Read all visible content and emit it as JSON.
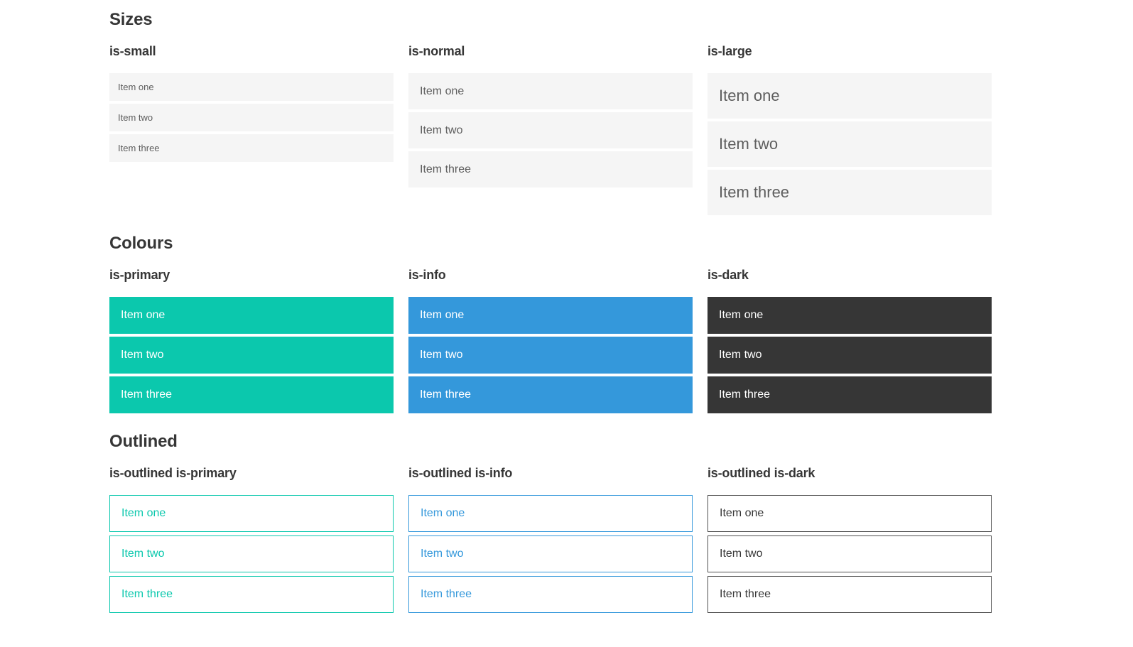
{
  "colors": {
    "primary": "#0bc8ad",
    "info": "#3498db",
    "dark": "#363636",
    "item_background": "#f5f5f5",
    "item_text": "#5e5e5e",
    "heading_text": "#363636",
    "text_on_color": "#ffffff",
    "outlined_dark_border": "#4f4f4f"
  },
  "sections": [
    {
      "title": "Sizes",
      "groups": [
        {
          "label": "is-small",
          "variant": "small",
          "items": [
            "Item one",
            "Item two",
            "Item three"
          ]
        },
        {
          "label": "is-normal",
          "variant": "normal",
          "items": [
            "Item one",
            "Item two",
            "Item three"
          ]
        },
        {
          "label": "is-large",
          "variant": "large",
          "items": [
            "Item one",
            "Item two",
            "Item three"
          ]
        }
      ]
    },
    {
      "title": "Colours",
      "groups": [
        {
          "label": "is-primary",
          "variant": "primary",
          "items": [
            "Item one",
            "Item two",
            "Item three"
          ]
        },
        {
          "label": "is-info",
          "variant": "info",
          "items": [
            "Item one",
            "Item two",
            "Item three"
          ]
        },
        {
          "label": "is-dark",
          "variant": "dark",
          "items": [
            "Item one",
            "Item two",
            "Item three"
          ]
        }
      ]
    },
    {
      "title": "Outlined",
      "groups": [
        {
          "label": "is-outlined is-primary",
          "variant": "outlined-primary",
          "items": [
            "Item one",
            "Item two",
            "Item three"
          ]
        },
        {
          "label": "is-outlined is-info",
          "variant": "outlined-info",
          "items": [
            "Item one",
            "Item two",
            "Item three"
          ]
        },
        {
          "label": "is-outlined is-dark",
          "variant": "outlined-dark",
          "items": [
            "Item one",
            "Item two",
            "Item three"
          ]
        }
      ]
    }
  ]
}
